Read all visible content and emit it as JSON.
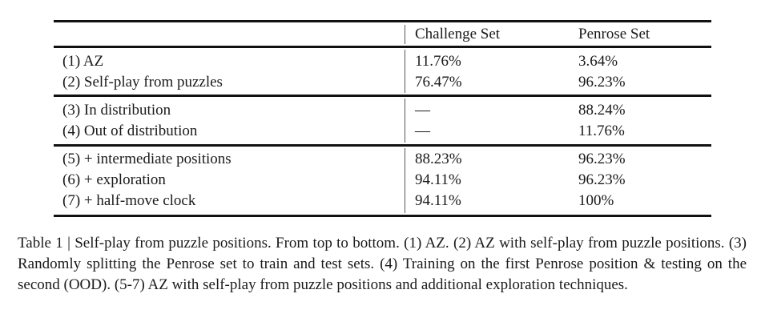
{
  "table": {
    "headers": [
      "",
      "Challenge Set",
      "Penrose Set"
    ],
    "groups": [
      [
        {
          "label": "(1) AZ",
          "challenge": "11.76%",
          "penrose": "3.64%"
        },
        {
          "label": "(2) Self-play from puzzles",
          "challenge": "76.47%",
          "penrose": "96.23%"
        }
      ],
      [
        {
          "label": "(3) In distribution",
          "challenge": "—",
          "penrose": "88.24%"
        },
        {
          "label": "(4) Out of distribution",
          "challenge": "—",
          "penrose": "11.76%"
        }
      ],
      [
        {
          "label": "(5) + intermediate positions",
          "challenge": "88.23%",
          "penrose": "96.23%"
        },
        {
          "label": "(6) + exploration",
          "challenge": "94.11%",
          "penrose": "96.23%"
        },
        {
          "label": "(7) + half-move clock",
          "challenge": "94.11%",
          "penrose": "100%"
        }
      ]
    ]
  },
  "caption": "Table 1 | Self-play from puzzle positions. From top to bottom. (1) AZ. (2) AZ with self-play from puzzle positions. (3) Randomly splitting the Penrose set to train and test sets. (4) Training on the first Penrose position & testing on the second (OOD). (5-7) AZ with self-play from puzzle positions and additional exploration techniques."
}
